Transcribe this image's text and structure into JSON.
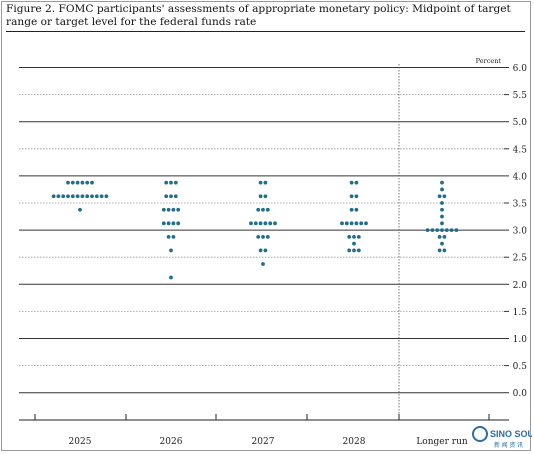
{
  "figure": {
    "title": "Figure 2. FOMC participants' assessments of appropriate monetary policy: Midpoint of target range or target level for the federal funds rate"
  },
  "watermark": {
    "text": "SINO SOUND",
    "subtext": "新 闻 资 讯"
  },
  "chart_data": {
    "type": "scatter",
    "title": "Figure 2. FOMC participants' assessments of appropriate monetary policy: Midpoint of target range or target level for the federal funds rate",
    "unit_label": "Percent",
    "categories": [
      "2025",
      "2026",
      "2027",
      "2028",
      "Longer run"
    ],
    "ylim": [
      -0.25,
      6.0
    ],
    "yticks": [
      0.0,
      0.5,
      1.0,
      1.5,
      2.0,
      2.5,
      3.0,
      3.5,
      4.0,
      4.5,
      5.0,
      5.5,
      6.0
    ],
    "grid": "solid at whole numbers, dotted at half numbers",
    "dot_color": "#1f6f8b",
    "dots": [
      {
        "category": "2025",
        "points": [
          {
            "y": 3.875,
            "count": 6
          },
          {
            "y": 3.625,
            "count": 12
          },
          {
            "y": 3.375,
            "count": 1
          }
        ]
      },
      {
        "category": "2026",
        "points": [
          {
            "y": 3.875,
            "count": 3
          },
          {
            "y": 3.625,
            "count": 3
          },
          {
            "y": 3.375,
            "count": 4
          },
          {
            "y": 3.125,
            "count": 4
          },
          {
            "y": 2.875,
            "count": 2
          },
          {
            "y": 2.625,
            "count": 1
          },
          {
            "y": 2.125,
            "count": 1
          }
        ]
      },
      {
        "category": "2027",
        "points": [
          {
            "y": 3.875,
            "count": 2
          },
          {
            "y": 3.625,
            "count": 2
          },
          {
            "y": 3.375,
            "count": 3
          },
          {
            "y": 3.125,
            "count": 6
          },
          {
            "y": 2.875,
            "count": 3
          },
          {
            "y": 2.625,
            "count": 2
          },
          {
            "y": 2.375,
            "count": 1
          }
        ]
      },
      {
        "category": "2028",
        "points": [
          {
            "y": 3.875,
            "count": 2
          },
          {
            "y": 3.625,
            "count": 2
          },
          {
            "y": 3.375,
            "count": 2
          },
          {
            "y": 3.125,
            "count": 6
          },
          {
            "y": 2.875,
            "count": 3
          },
          {
            "y": 2.75,
            "count": 1
          },
          {
            "y": 2.625,
            "count": 3
          }
        ]
      },
      {
        "category": "Longer run",
        "points": [
          {
            "y": 3.875,
            "count": 1
          },
          {
            "y": 3.75,
            "count": 1
          },
          {
            "y": 3.625,
            "count": 2
          },
          {
            "y": 3.5,
            "count": 1
          },
          {
            "y": 3.375,
            "count": 1
          },
          {
            "y": 3.25,
            "count": 1
          },
          {
            "y": 3.125,
            "count": 1
          },
          {
            "y": 3.0,
            "count": 7
          },
          {
            "y": 2.875,
            "count": 2
          },
          {
            "y": 2.75,
            "count": 1
          },
          {
            "y": 2.625,
            "count": 2
          }
        ]
      }
    ]
  }
}
